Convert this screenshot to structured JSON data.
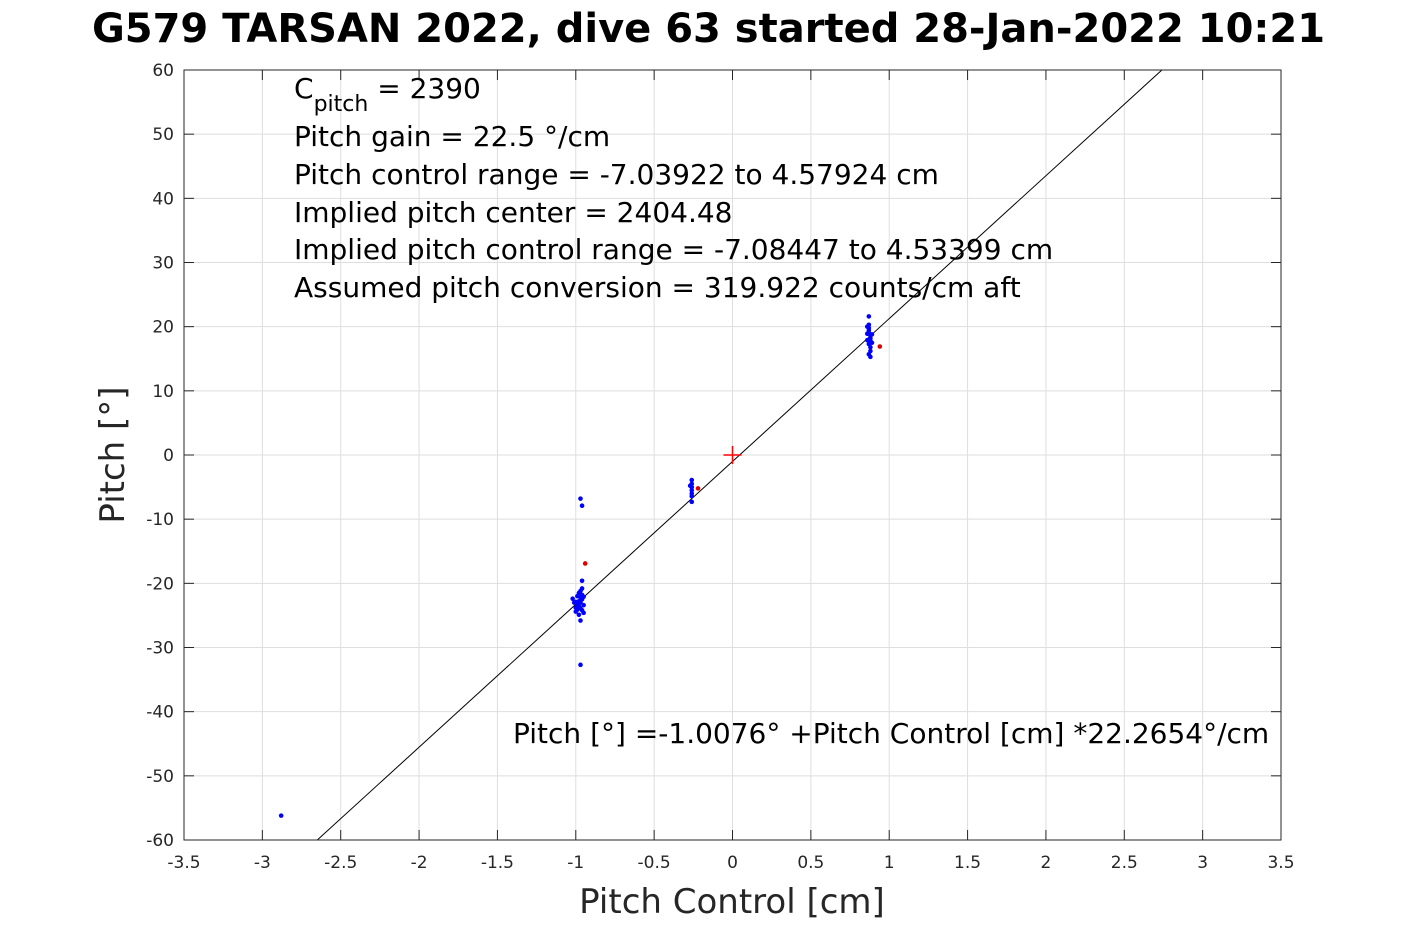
{
  "title": "G579 TARSAN 2022, dive 63 started 28-Jan-2022 10:21",
  "chart_data": {
    "type": "scatter",
    "xlabel": "Pitch Control [cm]",
    "ylabel": "Pitch [°]",
    "xlim": [
      -3.5,
      3.5
    ],
    "ylim": [
      -60,
      60
    ],
    "xticks": [
      -3.5,
      -3,
      -2.5,
      -2,
      -1.5,
      -1,
      -0.5,
      0,
      0.5,
      1,
      1.5,
      2,
      2.5,
      3,
      3.5
    ],
    "xtick_labels": [
      "-3.5",
      "-3",
      "-2.5",
      "-2",
      "-1.5",
      "-1",
      "-0.5",
      "0",
      "0.5",
      "1",
      "1.5",
      "2",
      "2.5",
      "3",
      "3.5"
    ],
    "yticks": [
      -60,
      -50,
      -40,
      -30,
      -20,
      -10,
      0,
      10,
      20,
      30,
      40,
      50,
      60
    ],
    "ytick_labels": [
      "-60",
      "-50",
      "-40",
      "-30",
      "-20",
      "-10",
      "0",
      "10",
      "20",
      "30",
      "40",
      "50",
      "60"
    ],
    "grid": true,
    "colors": {
      "primary": "#0000ff",
      "outlier": "#e00000",
      "fit_line": "#000000",
      "grid": "#dedede",
      "axes": "#262626"
    },
    "series": [
      {
        "color": "#0000ff",
        "points": [
          [
            -2.88,
            -56.2
          ],
          [
            -0.97,
            -6.8
          ],
          [
            -0.96,
            -7.9
          ],
          [
            -0.97,
            -32.7
          ],
          [
            -1.02,
            -22.4
          ],
          [
            -1.01,
            -23.0
          ],
          [
            -1.0,
            -23.8
          ],
          [
            -1.0,
            -24.4
          ],
          [
            -0.99,
            -22.0
          ],
          [
            -0.99,
            -23.2
          ],
          [
            -0.98,
            -24.9
          ],
          [
            -0.98,
            -21.5
          ],
          [
            -0.98,
            -22.8
          ],
          [
            -0.97,
            -25.8
          ],
          [
            -0.97,
            -23.9
          ],
          [
            -0.97,
            -21.2
          ],
          [
            -0.96,
            -24.2
          ],
          [
            -0.96,
            -22.5
          ],
          [
            -0.96,
            -20.8
          ],
          [
            -0.96,
            -19.6
          ],
          [
            -0.95,
            -23.4
          ],
          [
            -0.95,
            -22.1
          ],
          [
            -0.95,
            -24.6
          ],
          [
            -0.97,
            -23.0
          ],
          [
            -0.99,
            -24.1
          ],
          [
            -1.0,
            -22.9
          ],
          [
            -0.98,
            -23.6
          ],
          [
            -0.96,
            -21.8
          ],
          [
            -0.97,
            -22.2
          ],
          [
            -0.26,
            -3.9
          ],
          [
            -0.26,
            -4.5
          ],
          [
            -0.26,
            -5.0
          ],
          [
            -0.26,
            -5.5
          ],
          [
            -0.26,
            -6.0
          ],
          [
            -0.26,
            -6.4
          ],
          [
            -0.26,
            -7.3
          ],
          [
            -0.27,
            -4.8
          ],
          [
            0.87,
            21.6
          ],
          [
            0.87,
            20.3
          ],
          [
            0.87,
            19.8
          ],
          [
            0.87,
            19.4
          ],
          [
            0.87,
            19.0
          ],
          [
            0.88,
            18.6
          ],
          [
            0.88,
            18.2
          ],
          [
            0.88,
            17.8
          ],
          [
            0.87,
            17.3
          ],
          [
            0.88,
            16.8
          ],
          [
            0.88,
            16.2
          ],
          [
            0.87,
            15.7
          ],
          [
            0.88,
            15.3
          ],
          [
            0.86,
            18.9
          ],
          [
            0.86,
            20.0
          ],
          [
            0.89,
            17.5
          ],
          [
            0.89,
            18.8
          ],
          [
            0.86,
            17.9
          ]
        ]
      },
      {
        "color": "#e00000",
        "points": [
          [
            -0.94,
            -16.9
          ],
          [
            -0.22,
            -5.2
          ],
          [
            0.94,
            16.9
          ]
        ]
      }
    ],
    "center_marker": {
      "x": 0,
      "y": 0,
      "color": "#ff0000",
      "shape": "plus"
    },
    "fit_line": {
      "intercept": -1.0076,
      "slope": 22.2654
    },
    "annotations": {
      "c_pitch_prefix": "C",
      "c_pitch_sub": "pitch",
      "c_pitch_value": " = 2390",
      "lines": [
        "Pitch gain = 22.5 °/cm",
        "Pitch control range = -7.03922 to 4.57924 cm",
        "Implied pitch center = 2404.48",
        "Implied pitch control range = -7.08447 to 4.53399 cm",
        "Assumed pitch conversion = 319.922 counts/cm aft"
      ],
      "fit_equation": "Pitch [°] =-1.0076° +Pitch Control [cm] *22.2654°/cm"
    }
  }
}
